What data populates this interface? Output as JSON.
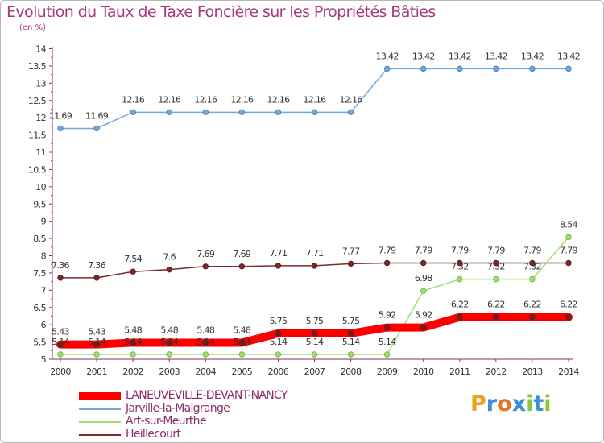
{
  "chart_data": {
    "type": "line",
    "title": "Evolution du Taux de Taxe Foncière sur les Propriétés Bâties",
    "ylabel": "(en %)",
    "xlabel": "",
    "ylim": [
      5,
      14
    ],
    "yticks": [
      5,
      5.5,
      6,
      6.5,
      7,
      7.5,
      8,
      8.5,
      9,
      9.5,
      10,
      10.5,
      11,
      11.5,
      12,
      12.5,
      13,
      13.5,
      14
    ],
    "ytick_labels": [
      "5",
      "5.5",
      "6",
      "6.5",
      "7",
      "7.5",
      "8",
      "8.5",
      "9",
      "9.5",
      "10",
      "10.5",
      "11",
      "11.5",
      "12",
      "12.5",
      "13",
      "13.5",
      "14"
    ],
    "categories": [
      "2000",
      "2001",
      "2002",
      "2003",
      "2004",
      "2005",
      "2006",
      "2007",
      "2008",
      "2009",
      "2010",
      "2011",
      "2012",
      "2013",
      "2014"
    ],
    "series": [
      {
        "name": "LANEUVEVILLE-DEVANT-NANCY",
        "color": "#ff0000",
        "values": [
          5.43,
          5.43,
          5.48,
          5.48,
          5.48,
          5.48,
          5.75,
          5.75,
          5.75,
          5.92,
          5.92,
          6.22,
          6.22,
          6.22,
          6.22
        ]
      },
      {
        "name": "Jarville-la-Malgrange",
        "color": "#6fa8dc",
        "values": [
          11.69,
          11.69,
          12.16,
          12.16,
          12.16,
          12.16,
          12.16,
          12.16,
          12.16,
          13.42,
          13.42,
          13.42,
          13.42,
          13.42,
          13.42
        ]
      },
      {
        "name": "Art-sur-Meurthe",
        "color": "#9ee070",
        "values": [
          5.14,
          5.14,
          5.14,
          5.14,
          5.14,
          5.14,
          5.14,
          5.14,
          5.14,
          5.14,
          6.98,
          7.32,
          7.32,
          7.32,
          8.54
        ]
      },
      {
        "name": "Heillecourt",
        "color": "#7a2a2a",
        "values": [
          7.36,
          7.36,
          7.54,
          7.6,
          7.69,
          7.69,
          7.71,
          7.71,
          7.77,
          7.79,
          7.79,
          7.79,
          7.79,
          7.79,
          7.79
        ]
      }
    ],
    "legend": "bottom-left",
    "grid": false
  },
  "logo": {
    "letters": [
      "P",
      "r",
      "o",
      "x",
      "i",
      "t",
      "i"
    ],
    "colors": [
      "#f0a020",
      "#3a8fd8",
      "#e07828",
      "#3a8fd8",
      "#8cc63f",
      "#3a8fd8",
      "#8cc63f"
    ]
  }
}
